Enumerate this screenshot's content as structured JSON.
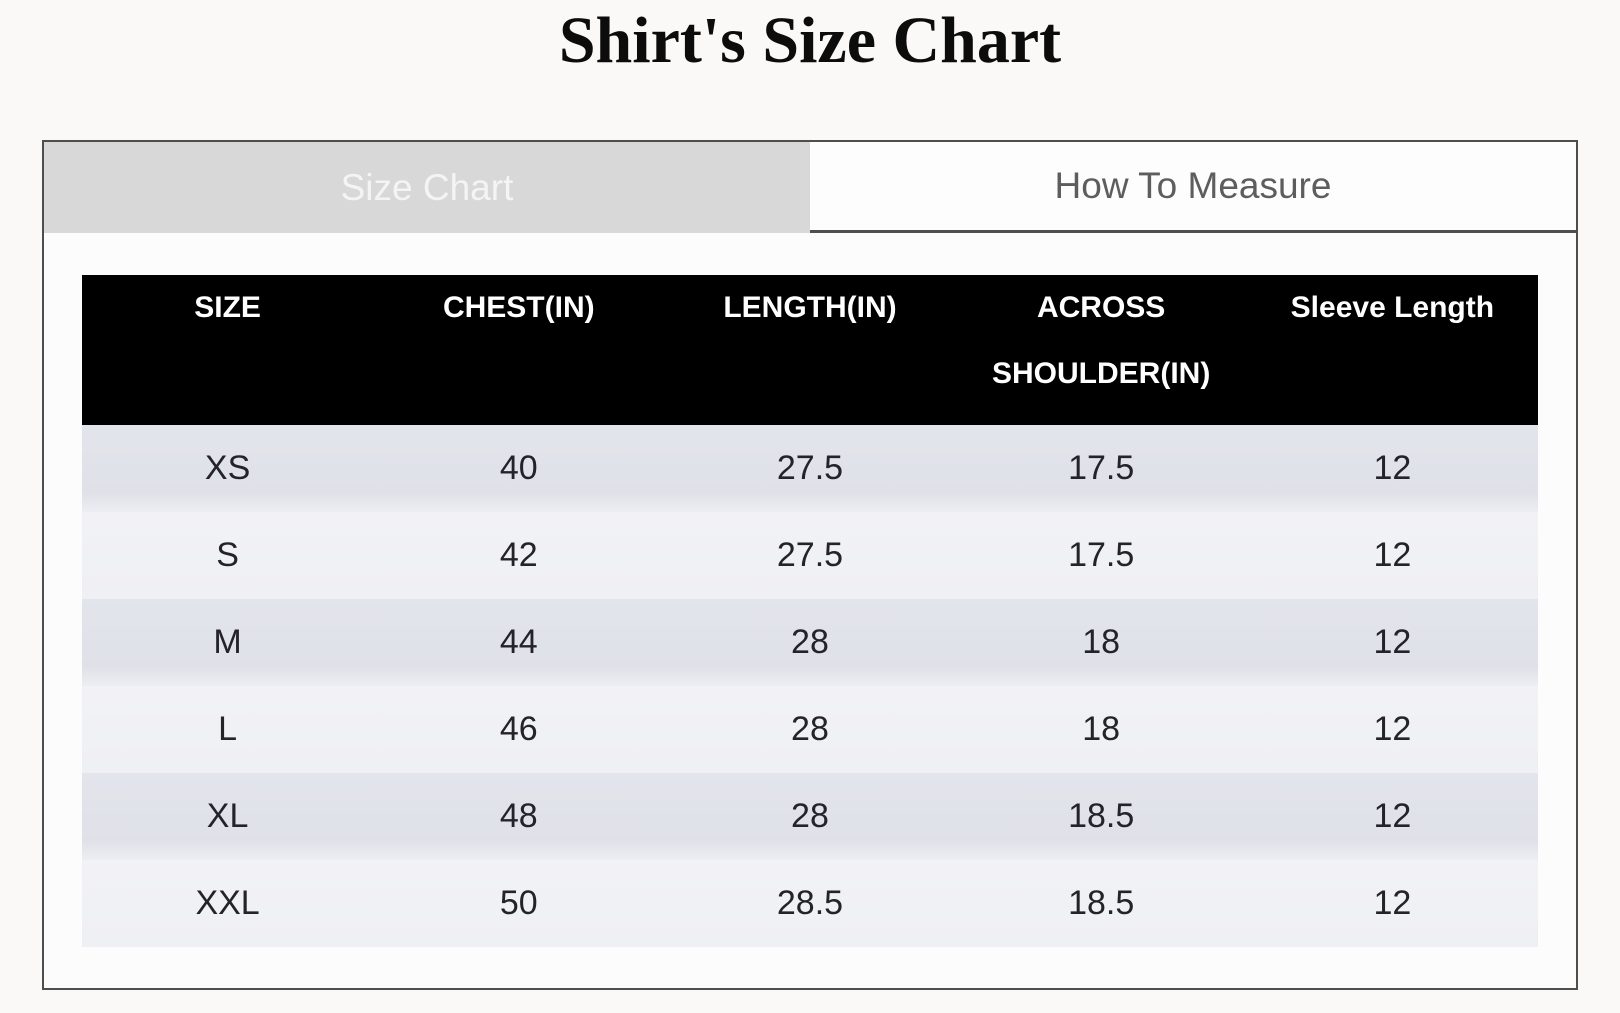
{
  "title": "Shirt's Size Chart",
  "tabs": {
    "size_chart": "Size Chart",
    "how_to_measure": "How To Measure"
  },
  "table": {
    "columns": [
      "SIZE",
      "CHEST(IN)",
      "LENGTH(IN)",
      "ACROSS SHOULDER(IN)",
      "Sleeve Length"
    ],
    "rows": [
      [
        "XS",
        "40",
        "27.5",
        "17.5",
        "12"
      ],
      [
        "S",
        "42",
        "27.5",
        "17.5",
        "12"
      ],
      [
        "M",
        "44",
        "28",
        "18",
        "12"
      ],
      [
        "L",
        "46",
        "28",
        "18",
        "12"
      ],
      [
        "XL",
        "48",
        "28",
        "18.5",
        "12"
      ],
      [
        "XXL",
        "50",
        "28.5",
        "18.5",
        "12"
      ]
    ]
  },
  "colors": {
    "page_bg": "#faf9f7",
    "border": "#4e4e4e",
    "active_tab_bg": "#d8d8d8",
    "active_tab_text": "#f4f4f4",
    "inactive_tab_text": "#5d5d5d",
    "header_bg": "#000000",
    "header_text": "#ffffff",
    "row_odd": "#e0e2e9",
    "row_even": "#f1f1f5"
  }
}
